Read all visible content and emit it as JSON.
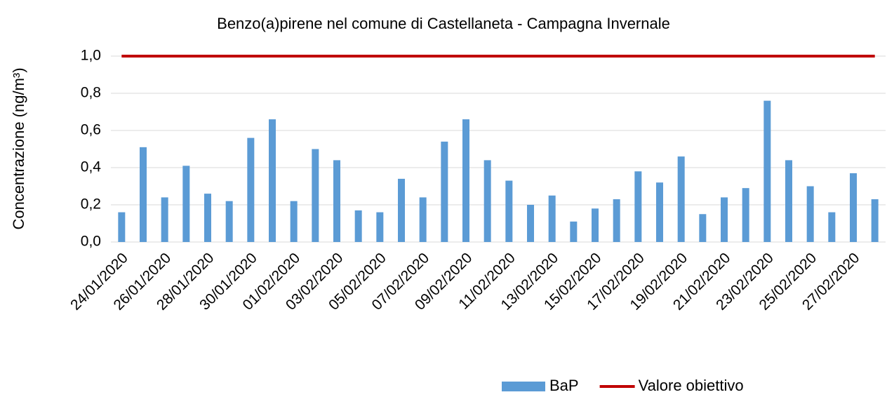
{
  "chart_data": {
    "type": "bar",
    "title": "Benzo(a)pirene nel comune di Castellaneta - Campagna Invernale",
    "y_label": "Concentrazione (ng/m³)",
    "categories": [
      "24/01/2020",
      null,
      "26/01/2020",
      null,
      "28/01/2020",
      null,
      "30/01/2020",
      null,
      "01/02/2020",
      null,
      "03/02/2020",
      null,
      "05/02/2020",
      null,
      "07/02/2020",
      null,
      "09/02/2020",
      null,
      "11/02/2020",
      null,
      "13/02/2020",
      null,
      "15/02/2020",
      null,
      "17/02/2020",
      null,
      "19/02/2020",
      null,
      "21/02/2020",
      null,
      "23/02/2020",
      null,
      "25/02/2020",
      null,
      "27/02/2020",
      null
    ],
    "series": [
      {
        "name": "BaP",
        "type": "bar",
        "color": "#5b9bd5",
        "values": [
          0.16,
          0.51,
          0.24,
          0.41,
          0.26,
          0.22,
          0.56,
          0.66,
          0.22,
          0.5,
          0.44,
          0.17,
          0.16,
          0.34,
          0.24,
          0.54,
          0.66,
          0.44,
          0.33,
          0.2,
          0.25,
          0.11,
          0.18,
          0.23,
          0.38,
          0.32,
          0.46,
          0.15,
          0.24,
          0.29,
          0.76,
          0.44,
          0.3,
          0.16,
          0.37,
          0.23
        ]
      },
      {
        "name": "Valore obiettivo",
        "type": "line",
        "color": "#c00000",
        "values": [
          1.0,
          1.0,
          1.0,
          1.0,
          1.0,
          1.0,
          1.0,
          1.0,
          1.0,
          1.0,
          1.0,
          1.0,
          1.0,
          1.0,
          1.0,
          1.0,
          1.0,
          1.0,
          1.0,
          1.0,
          1.0,
          1.0,
          1.0,
          1.0,
          1.0,
          1.0,
          1.0,
          1.0,
          1.0,
          1.0,
          1.0,
          1.0,
          1.0,
          1.0,
          1.0,
          1.0
        ]
      }
    ],
    "ylim": [
      0,
      1.0
    ],
    "yticks": [
      {
        "value": 0,
        "label": "0,0"
      },
      {
        "value": 0.2,
        "label": "0,2"
      },
      {
        "value": 0.4,
        "label": "0,4"
      },
      {
        "value": 0.6,
        "label": "0,6"
      },
      {
        "value": 0.8,
        "label": "0,8"
      },
      {
        "value": 1.0,
        "label": "1,0"
      }
    ],
    "grid": true,
    "legend": "bottom"
  }
}
